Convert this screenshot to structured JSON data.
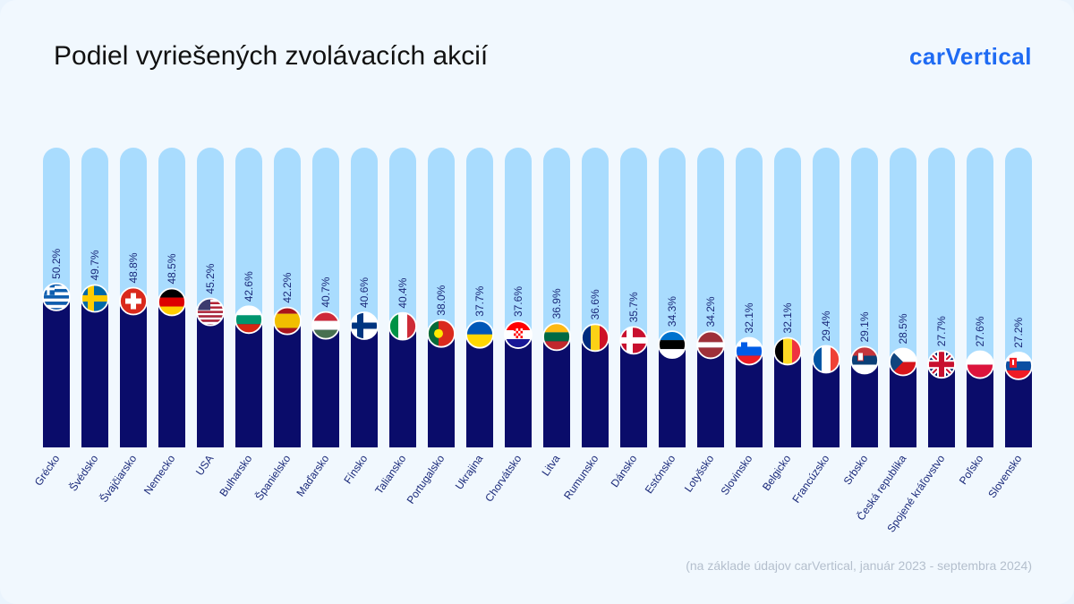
{
  "header": {
    "title": "Podiel vyriešených zvolávacích akcií",
    "logo_text": "carVertical"
  },
  "footnote": "(na základe údajov carVertical, január 2023 - septembra 2024)",
  "colors": {
    "track": "#a9dcfe",
    "bar": "#0a0c6a",
    "label": "#1b2a7a",
    "logo": "#1f6bf3"
  },
  "chart_data": {
    "type": "bar",
    "orientation": "vertical",
    "ylim": [
      0,
      100
    ],
    "value_suffix": "%",
    "categories": [
      "Grécko",
      "Švédsko",
      "Švajčiarsko",
      "Nemecko",
      "USA",
      "Bulharsko",
      "Španielsko",
      "Maďarsko",
      "Fínsko",
      "Taliansko",
      "Portugalsko",
      "Ukrajina",
      "Chorvátsko",
      "Litva",
      "Rumunsko",
      "Dánsko",
      "Estónsko",
      "Lotyšsko",
      "Slovinsko",
      "Belgicko",
      "Francúzsko",
      "Srbsko",
      "Česká republika",
      "Spojené kráľovstvo",
      "Poľsko",
      "Slovensko"
    ],
    "values": [
      50.2,
      49.7,
      48.8,
      48.5,
      45.2,
      42.6,
      42.2,
      40.7,
      40.6,
      40.4,
      38.0,
      37.7,
      37.6,
      36.9,
      36.6,
      35.7,
      34.3,
      34.2,
      32.1,
      32.1,
      29.4,
      29.1,
      28.5,
      27.7,
      27.6,
      27.2
    ],
    "labels": [
      "50.2%",
      "49.7%",
      "48.8%",
      "48.5%",
      "45.2%",
      "42.6%",
      "42.2%",
      "40.7%",
      "40.6%",
      "40.4%",
      "38.0%",
      "37.7%",
      "37.6%",
      "36.9%",
      "36.6%",
      "35.7%",
      "34.3%",
      "34.2%",
      "32.1%",
      "32.1%",
      "29.4%",
      "29.1%",
      "28.5%",
      "27.7%",
      "27.6%",
      "27.2%"
    ],
    "flags": [
      "greece-flag-icon",
      "sweden-flag-icon",
      "switzerland-flag-icon",
      "germany-flag-icon",
      "usa-flag-icon",
      "bulgaria-flag-icon",
      "spain-flag-icon",
      "hungary-flag-icon",
      "finland-flag-icon",
      "italy-flag-icon",
      "portugal-flag-icon",
      "ukraine-flag-icon",
      "croatia-flag-icon",
      "lithuania-flag-icon",
      "romania-flag-icon",
      "denmark-flag-icon",
      "estonia-flag-icon",
      "latvia-flag-icon",
      "slovenia-flag-icon",
      "belgium-flag-icon",
      "france-flag-icon",
      "serbia-flag-icon",
      "czech-flag-icon",
      "uk-flag-icon",
      "poland-flag-icon",
      "slovakia-flag-icon"
    ]
  }
}
